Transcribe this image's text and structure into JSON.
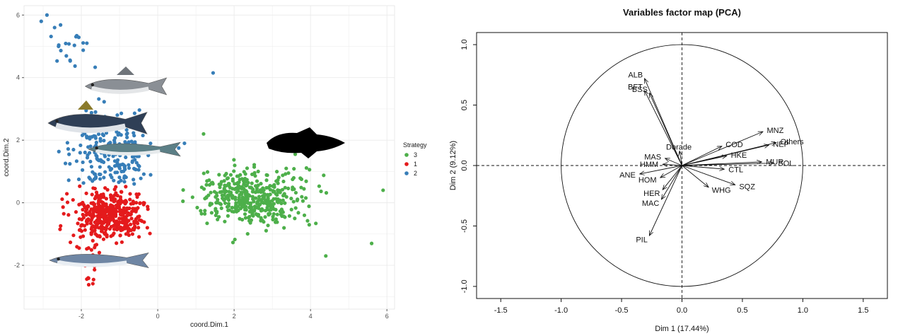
{
  "chart_data": [
    {
      "type": "scatter",
      "xlabel": "coord.Dim.1",
      "ylabel": "coord.Dim.2",
      "xlim": [
        -3.5,
        6.2
      ],
      "ylim": [
        -3.4,
        6.3
      ],
      "xticks": [
        -2,
        0,
        2,
        4,
        6
      ],
      "yticks": [
        -2,
        0,
        2,
        4,
        6
      ],
      "grid": true,
      "legend": {
        "title": "Strategy",
        "position": "right"
      },
      "series": [
        {
          "name": "3",
          "color": "#4daf4a"
        },
        {
          "name": "1",
          "color": "#e41a1c"
        },
        {
          "name": "2",
          "color": "#377eb8"
        }
      ],
      "image_overlays": [
        "sea-bass",
        "tuna",
        "mackerel",
        "cod-silhouette",
        "sardine"
      ]
    },
    {
      "type": "scatter",
      "title": "Variables factor map (PCA)",
      "xlabel": "Dim 1 (17.44%)",
      "ylabel": "Dim 2 (9.12%)",
      "xlim": [
        -1.7,
        1.7
      ],
      "ylim": [
        -1.1,
        1.1
      ],
      "xticks": [
        "-1.5",
        "-1.0",
        "-0.5",
        "0.0",
        "0.5",
        "1.0",
        "1.5"
      ],
      "yticks": [
        "-1.0",
        "-0.5",
        "0.0",
        "0.5",
        "1.0"
      ],
      "correlation_circle": true,
      "vectors": [
        {
          "name": "ALB",
          "x": -0.31,
          "y": 0.72
        },
        {
          "name": "BSS",
          "x": -0.27,
          "y": 0.6
        },
        {
          "name": "BFT",
          "x": -0.31,
          "y": 0.62
        },
        {
          "name": "MNZ",
          "x": 0.67,
          "y": 0.28
        },
        {
          "name": "NEP",
          "x": 0.72,
          "y": 0.17
        },
        {
          "name": "Others",
          "x": 0.78,
          "y": 0.19
        },
        {
          "name": "COD",
          "x": 0.33,
          "y": 0.16
        },
        {
          "name": "Dorade",
          "x": -0.02,
          "y": 0.12
        },
        {
          "name": "HKE",
          "x": 0.37,
          "y": 0.08
        },
        {
          "name": "MUR",
          "x": 0.66,
          "y": 0.03
        },
        {
          "name": "SOL",
          "x": 0.76,
          "y": 0.02
        },
        {
          "name": "MAS",
          "x": -0.14,
          "y": 0.06
        },
        {
          "name": "HMM",
          "x": -0.16,
          "y": 0.01
        },
        {
          "name": "ANE",
          "x": -0.35,
          "y": -0.07
        },
        {
          "name": "CTL",
          "x": 0.35,
          "y": -0.03
        },
        {
          "name": "HOM",
          "x": -0.18,
          "y": -0.1
        },
        {
          "name": "HER",
          "x": -0.16,
          "y": -0.2
        },
        {
          "name": "MAC",
          "x": -0.17,
          "y": -0.28
        },
        {
          "name": "SQZ",
          "x": 0.44,
          "y": -0.16
        },
        {
          "name": "WHG",
          "x": 0.22,
          "y": -0.18
        },
        {
          "name": "PIL",
          "x": -0.27,
          "y": -0.58
        }
      ]
    }
  ]
}
